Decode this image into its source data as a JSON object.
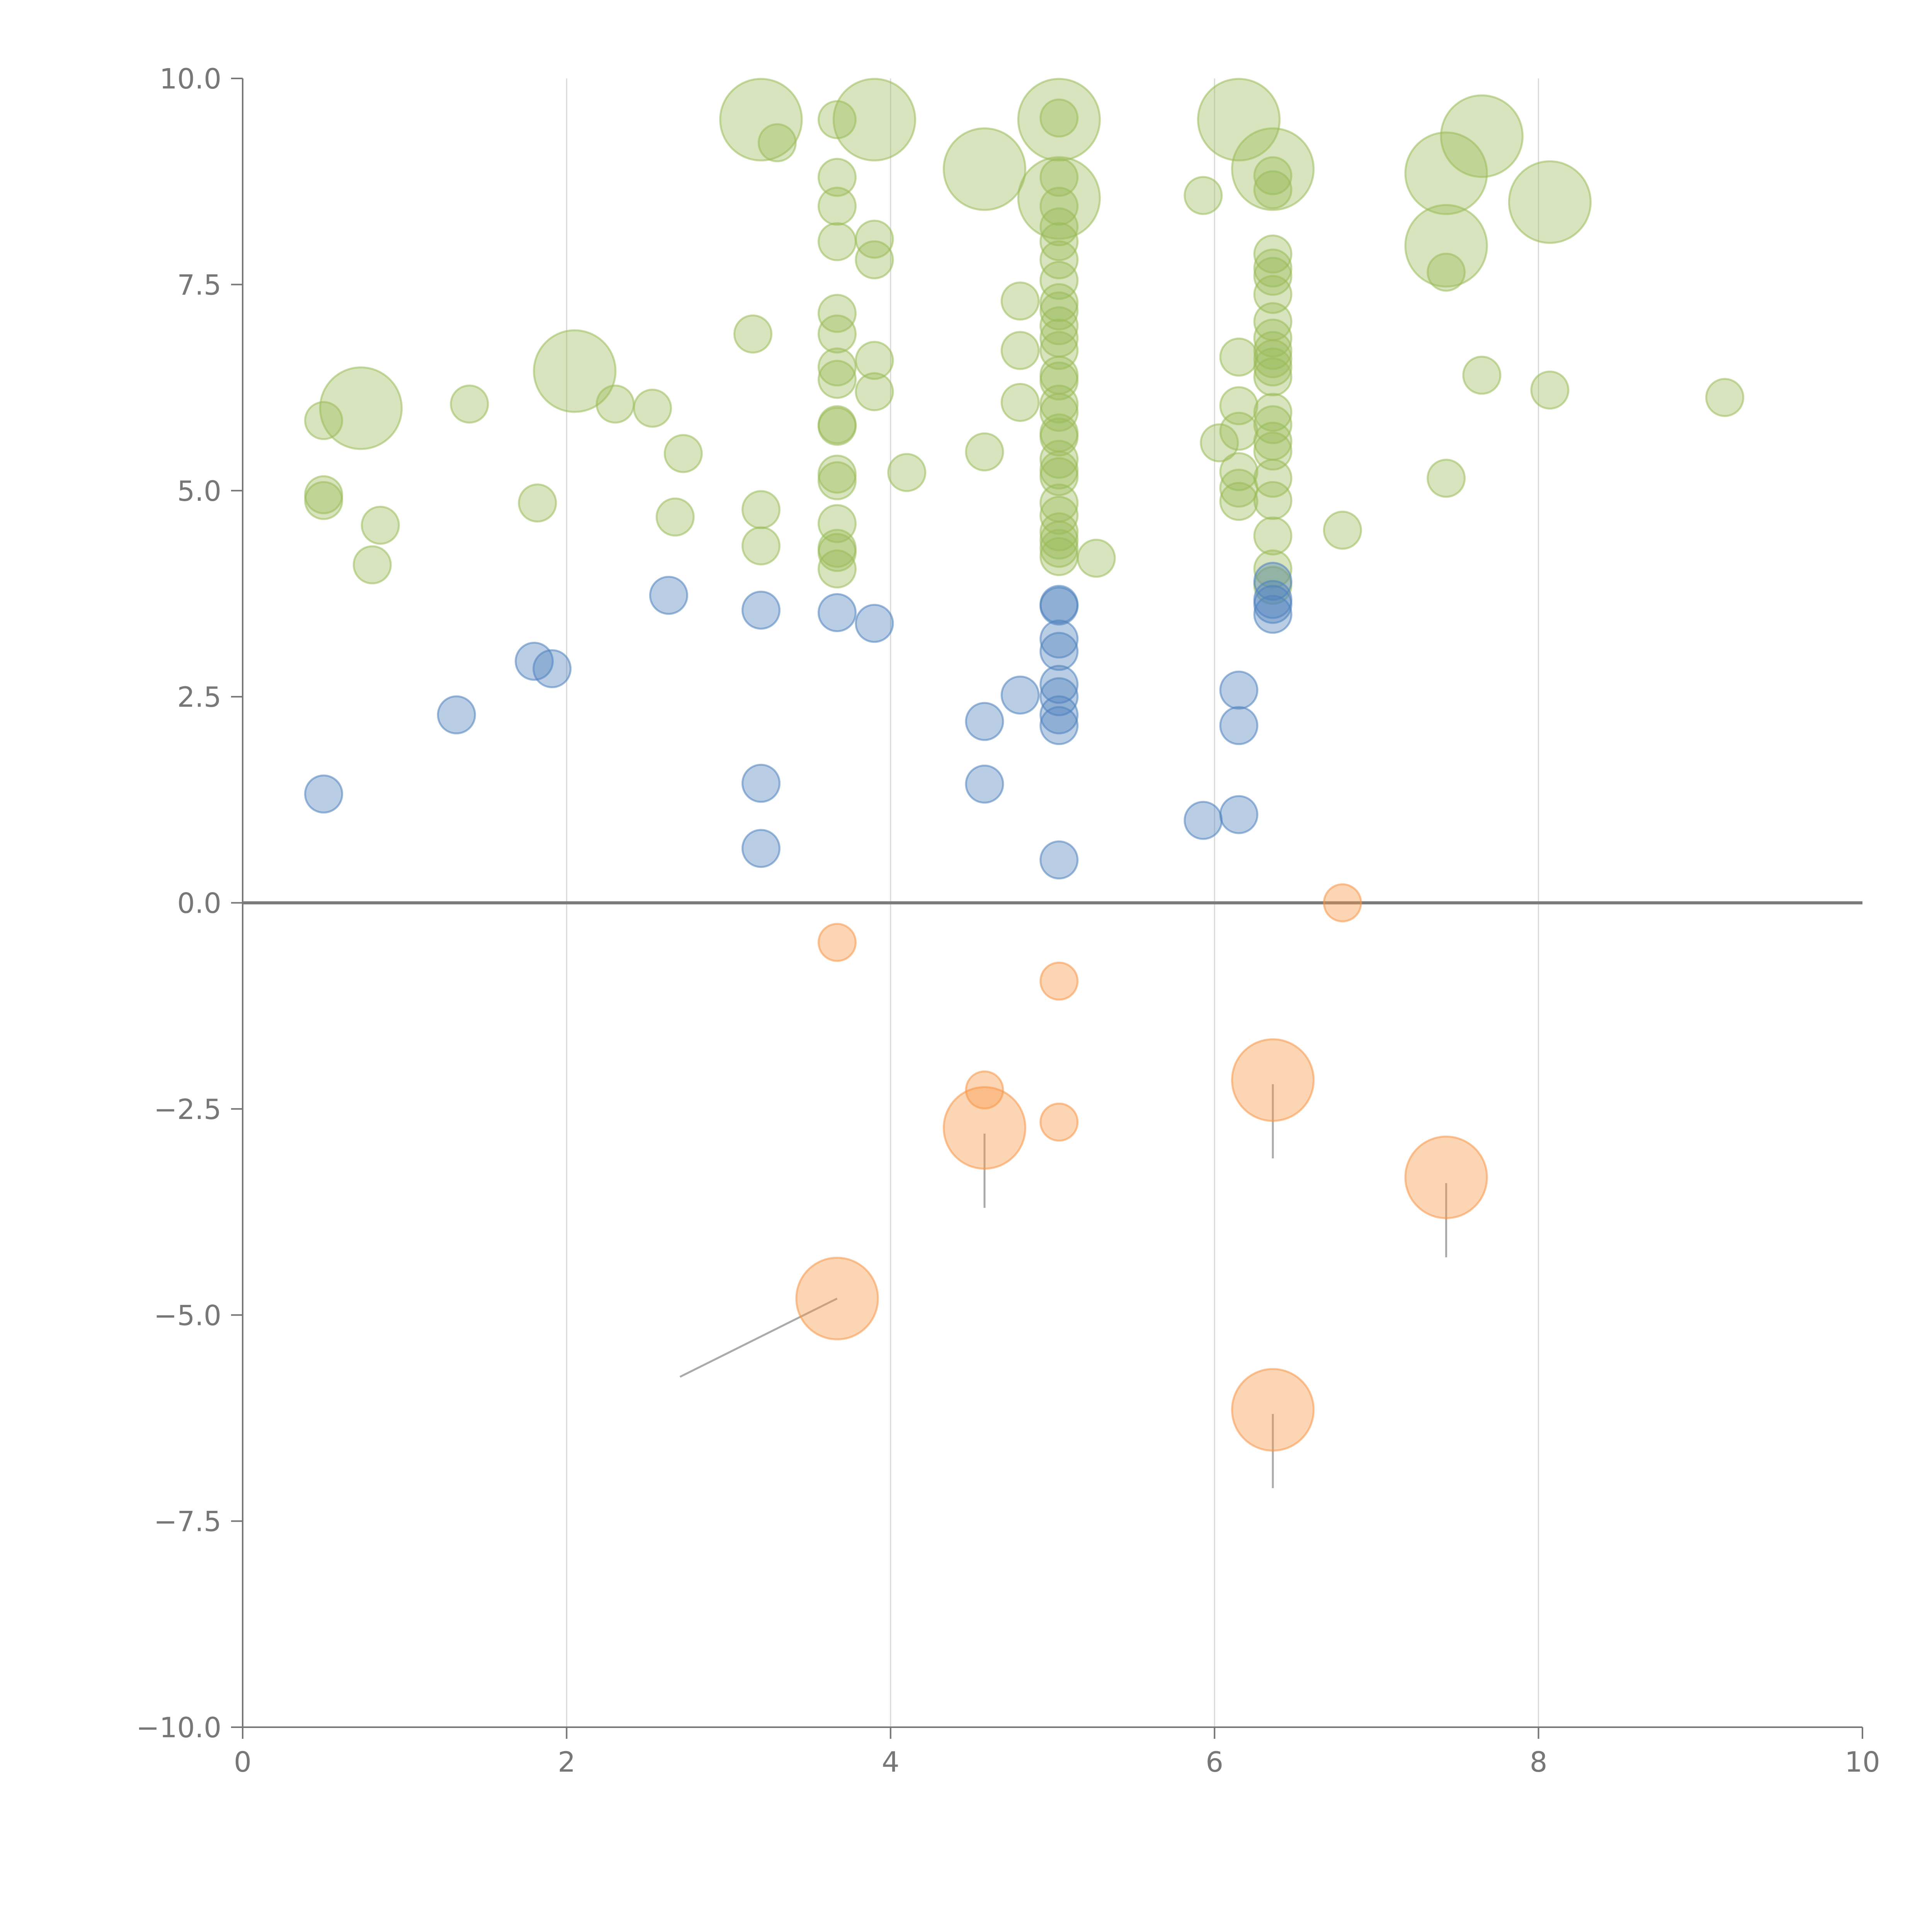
{
  "chart_data": {
    "type": "scatter",
    "title": "",
    "xlabel": "",
    "ylabel": "",
    "xlim": [
      0,
      10
    ],
    "ylim": [
      -10,
      10
    ],
    "x_ticks": [
      0,
      2,
      4,
      6,
      8,
      10
    ],
    "y_ticks": [
      10.0,
      7.5,
      5.0,
      2.5,
      0.0,
      -2.5,
      -5.0,
      -7.5,
      -10.0
    ],
    "x_tick_labels": [
      "0",
      "2",
      "4",
      "6",
      "8",
      "10"
    ],
    "y_tick_labels": [
      "10.0",
      "7.5",
      "5.0",
      "2.5",
      "0.0",
      "−2.5",
      "−5.0",
      "−7.5",
      "−10.0"
    ],
    "vertical_grid": [
      2,
      4,
      6,
      8
    ],
    "reference_line_y": 0,
    "series": [
      {
        "name": "green",
        "color": "#9bbb59",
        "points": [
          [
            0.5,
            5.85,
            1
          ],
          [
            0.73,
            6.0,
            2.2
          ],
          [
            0.5,
            4.95,
            1
          ],
          [
            0.5,
            4.88,
            1
          ],
          [
            0.85,
            4.58,
            1
          ],
          [
            0.8,
            4.1,
            1
          ],
          [
            1.4,
            6.05,
            1
          ],
          [
            1.82,
            4.85,
            1
          ],
          [
            2.05,
            6.45,
            2.2
          ],
          [
            2.3,
            6.05,
            1
          ],
          [
            2.53,
            6.0,
            1
          ],
          [
            2.72,
            5.45,
            1
          ],
          [
            2.67,
            4.68,
            1
          ],
          [
            3.15,
            6.9,
            1
          ],
          [
            3.2,
            4.77,
            1
          ],
          [
            3.2,
            4.33,
            1
          ],
          [
            3.2,
            9.5,
            2.2
          ],
          [
            3.3,
            9.22,
            1
          ],
          [
            3.67,
            9.5,
            1
          ],
          [
            3.67,
            8.8,
            1
          ],
          [
            3.67,
            8.45,
            1
          ],
          [
            3.67,
            8.02,
            1
          ],
          [
            3.67,
            7.15,
            1
          ],
          [
            3.67,
            6.9,
            1
          ],
          [
            3.67,
            6.5,
            1
          ],
          [
            3.67,
            6.35,
            1
          ],
          [
            3.67,
            5.8,
            1
          ],
          [
            3.67,
            5.78,
            1
          ],
          [
            3.67,
            5.2,
            1
          ],
          [
            3.67,
            5.12,
            1
          ],
          [
            3.67,
            4.6,
            1
          ],
          [
            3.67,
            4.3,
            1
          ],
          [
            3.67,
            4.25,
            1
          ],
          [
            3.67,
            4.05,
            1
          ],
          [
            3.9,
            9.5,
            2.2
          ],
          [
            3.9,
            8.05,
            1
          ],
          [
            3.9,
            7.8,
            1
          ],
          [
            3.9,
            6.58,
            1
          ],
          [
            3.9,
            6.2,
            1
          ],
          [
            4.1,
            5.22,
            1
          ],
          [
            4.58,
            8.9,
            2.2
          ],
          [
            4.58,
            5.47,
            1
          ],
          [
            4.8,
            7.3,
            1
          ],
          [
            4.8,
            6.7,
            1
          ],
          [
            4.8,
            6.07,
            1
          ],
          [
            5.04,
            9.5,
            2.2
          ],
          [
            5.04,
            9.52,
            1
          ],
          [
            5.04,
            8.8,
            1
          ],
          [
            5.04,
            8.55,
            2.2
          ],
          [
            5.04,
            8.45,
            1
          ],
          [
            5.04,
            8.2,
            1
          ],
          [
            5.04,
            8.02,
            1
          ],
          [
            5.04,
            7.8,
            1
          ],
          [
            5.04,
            7.55,
            1
          ],
          [
            5.04,
            7.28,
            1
          ],
          [
            5.04,
            7.18,
            1
          ],
          [
            5.04,
            7.0,
            1
          ],
          [
            5.04,
            6.85,
            1
          ],
          [
            5.04,
            6.7,
            1
          ],
          [
            5.04,
            6.4,
            1
          ],
          [
            5.04,
            6.33,
            1
          ],
          [
            5.04,
            6.05,
            1
          ],
          [
            5.04,
            5.95,
            1
          ],
          [
            5.04,
            5.7,
            1
          ],
          [
            5.04,
            5.65,
            1
          ],
          [
            5.04,
            5.38,
            1
          ],
          [
            5.04,
            5.25,
            1
          ],
          [
            5.04,
            5.17,
            1
          ],
          [
            5.04,
            4.85,
            1
          ],
          [
            5.04,
            4.7,
            1
          ],
          [
            5.04,
            4.5,
            1
          ],
          [
            5.04,
            4.4,
            1
          ],
          [
            5.04,
            4.3,
            1
          ],
          [
            5.04,
            4.2,
            1
          ],
          [
            5.27,
            4.18,
            1
          ],
          [
            5.93,
            8.58,
            1
          ],
          [
            6.03,
            5.58,
            1
          ],
          [
            6.15,
            9.5,
            2.2
          ],
          [
            6.15,
            6.62,
            1
          ],
          [
            6.15,
            6.03,
            1
          ],
          [
            6.15,
            5.72,
            1
          ],
          [
            6.15,
            5.23,
            1
          ],
          [
            6.15,
            5.03,
            1
          ],
          [
            6.15,
            4.87,
            1
          ],
          [
            6.36,
            8.9,
            2.2
          ],
          [
            6.36,
            8.82,
            1
          ],
          [
            6.36,
            8.65,
            1
          ],
          [
            6.36,
            7.87,
            1
          ],
          [
            6.36,
            7.7,
            1
          ],
          [
            6.36,
            7.6,
            1
          ],
          [
            6.36,
            7.38,
            1
          ],
          [
            6.36,
            7.05,
            1
          ],
          [
            6.36,
            6.85,
            1
          ],
          [
            6.36,
            6.7,
            1
          ],
          [
            6.36,
            6.6,
            1
          ],
          [
            6.36,
            6.5,
            1
          ],
          [
            6.36,
            6.38,
            1
          ],
          [
            6.36,
            5.95,
            1
          ],
          [
            6.36,
            5.8,
            1
          ],
          [
            6.36,
            5.6,
            1
          ],
          [
            6.36,
            5.48,
            1
          ],
          [
            6.36,
            5.15,
            1
          ],
          [
            6.36,
            4.88,
            1
          ],
          [
            6.36,
            4.45,
            1
          ],
          [
            6.36,
            4.05,
            1
          ],
          [
            6.36,
            3.85,
            1
          ],
          [
            6.79,
            4.52,
            1
          ],
          [
            7.43,
            8.85,
            2.2
          ],
          [
            7.43,
            7.97,
            2.2
          ],
          [
            7.43,
            7.65,
            1
          ],
          [
            7.43,
            5.15,
            1
          ],
          [
            7.65,
            9.3,
            2.2
          ],
          [
            7.65,
            6.4,
            1
          ],
          [
            8.07,
            8.5,
            2.2
          ],
          [
            8.07,
            6.22,
            1
          ],
          [
            9.15,
            6.13,
            1
          ]
        ]
      },
      {
        "name": "blue",
        "color": "#4f81bd",
        "points": [
          [
            0.5,
            1.32,
            1
          ],
          [
            1.32,
            2.28,
            1
          ],
          [
            1.8,
            2.93,
            1
          ],
          [
            1.91,
            2.84,
            1
          ],
          [
            2.63,
            3.73,
            1
          ],
          [
            3.2,
            3.55,
            1
          ],
          [
            3.2,
            1.45,
            1
          ],
          [
            3.2,
            0.66,
            1
          ],
          [
            3.67,
            3.52,
            1
          ],
          [
            3.9,
            3.39,
            1
          ],
          [
            4.58,
            2.2,
            1
          ],
          [
            4.58,
            1.44,
            1
          ],
          [
            4.8,
            2.52,
            1
          ],
          [
            5.04,
            3.62,
            1
          ],
          [
            5.04,
            3.6,
            1
          ],
          [
            5.04,
            3.2,
            1
          ],
          [
            5.04,
            3.05,
            1
          ],
          [
            5.04,
            2.65,
            1
          ],
          [
            5.04,
            2.5,
            1
          ],
          [
            5.04,
            2.28,
            1
          ],
          [
            5.04,
            2.15,
            1
          ],
          [
            5.04,
            0.52,
            1
          ],
          [
            5.93,
            1.0,
            1
          ],
          [
            6.15,
            2.58,
            1
          ],
          [
            6.15,
            2.15,
            1
          ],
          [
            6.15,
            1.07,
            1
          ],
          [
            6.36,
            3.9,
            1
          ],
          [
            6.36,
            3.68,
            1
          ],
          [
            6.36,
            3.62,
            1
          ],
          [
            6.36,
            3.5,
            1
          ]
        ]
      },
      {
        "name": "orange",
        "color": "#f79646",
        "points": [
          [
            3.67,
            -0.48,
            1
          ],
          [
            3.67,
            -4.8,
            2.2
          ],
          [
            4.58,
            -2.27,
            1
          ],
          [
            4.58,
            -2.73,
            2.2
          ],
          [
            5.04,
            -0.95,
            1
          ],
          [
            5.04,
            -2.66,
            1
          ],
          [
            6.36,
            -2.15,
            2.2
          ],
          [
            6.36,
            -6.15,
            2.2
          ],
          [
            6.79,
            0.0,
            1
          ],
          [
            7.43,
            -3.33,
            2.2
          ]
        ]
      }
    ],
    "leader_lines": [
      {
        "from": [
          3.67,
          -4.8
        ],
        "to": [
          2.7,
          -5.75
        ],
        "color": "#aaaaaa"
      },
      {
        "from": [
          4.58,
          -2.8
        ],
        "to": [
          4.58,
          -3.7
        ],
        "color": "#aaaaaa"
      },
      {
        "from": [
          6.36,
          -2.2
        ],
        "to": [
          6.36,
          -3.1
        ],
        "color": "#aaaaaa"
      },
      {
        "from": [
          6.36,
          -6.2
        ],
        "to": [
          6.36,
          -7.1
        ],
        "color": "#aaaaaa"
      },
      {
        "from": [
          7.43,
          -3.4
        ],
        "to": [
          7.43,
          -4.3
        ],
        "color": "#aaaaaa"
      },
      {
        "from": [
          0.73,
          6.0
        ],
        "to": [
          0.9,
          6.2
        ],
        "color": "#ffffff"
      },
      {
        "from": [
          2.05,
          6.45
        ],
        "to": [
          2.25,
          6.7
        ],
        "color": "#ffffff"
      },
      {
        "from": [
          3.2,
          9.55
        ],
        "to": [
          3.55,
          9.5
        ],
        "color": "#ffffff"
      },
      {
        "from": [
          5.04,
          9.5
        ],
        "to": [
          5.4,
          9.58
        ],
        "color": "#ffffff"
      },
      {
        "from": [
          5.04,
          8.55
        ],
        "to": [
          5.5,
          8.35
        ],
        "color": "#ffffff"
      },
      {
        "from": [
          6.36,
          8.9
        ],
        "to": [
          6.45,
          9.15
        ],
        "color": "#ffffff"
      },
      {
        "from": [
          7.43,
          7.97
        ],
        "to": [
          7.35,
          7.5
        ],
        "color": "#ffffff"
      },
      {
        "from": [
          7.43,
          8.85
        ],
        "to": [
          7.8,
          9.45
        ],
        "color": "#ffffff"
      }
    ]
  }
}
